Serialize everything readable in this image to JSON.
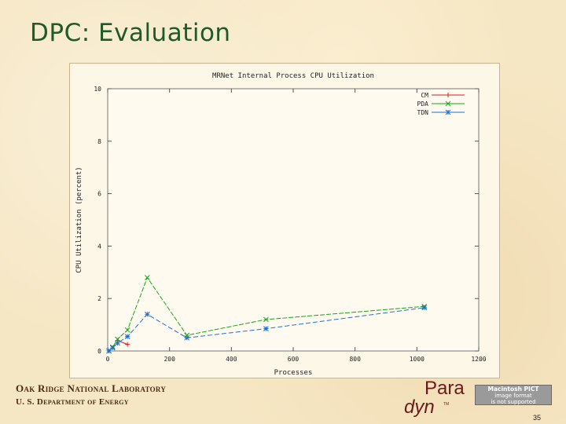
{
  "slide": {
    "title": "DPC: Evaluation",
    "footer_lab": "Oak Ridge National Laboratory",
    "footer_doe": "U. S. Department of Energy",
    "page_number": "35",
    "logo": {
      "text_top": "Para",
      "text_bottom": "dyn",
      "tm": "TM",
      "color": "#6b1a1a"
    },
    "pict_placeholder": {
      "line1": "Macintosh PICT",
      "line2": "image format",
      "line3": "is not supported"
    }
  },
  "chart_data": {
    "type": "line",
    "title": "MRNet Internal Process CPU Utilization",
    "xlabel": "Processes",
    "ylabel": "CPU Utilization (percent)",
    "xlim": [
      0,
      1200
    ],
    "ylim": [
      0,
      10
    ],
    "xticks": [
      0,
      200,
      400,
      600,
      800,
      1000,
      1200
    ],
    "yticks": [
      0,
      2,
      4,
      6,
      8,
      10
    ],
    "legend_position": "top-right",
    "series": [
      {
        "name": "CM",
        "color": "#d42020",
        "marker": "plus",
        "dash": "",
        "points": [
          [
            32,
            0.4
          ],
          [
            64,
            0.25
          ]
        ]
      },
      {
        "name": "PDA",
        "color": "#1aa31a",
        "marker": "cross",
        "dash": "6,2",
        "points": [
          [
            4,
            0.0
          ],
          [
            16,
            0.15
          ],
          [
            32,
            0.45
          ],
          [
            64,
            0.8
          ],
          [
            128,
            2.8
          ],
          [
            256,
            0.6
          ],
          [
            512,
            1.2
          ],
          [
            1024,
            1.7
          ]
        ]
      },
      {
        "name": "TDN",
        "color": "#1f6fd1",
        "marker": "star",
        "dash": "6,3",
        "points": [
          [
            4,
            0.0
          ],
          [
            16,
            0.12
          ],
          [
            32,
            0.3
          ],
          [
            64,
            0.55
          ],
          [
            128,
            1.4
          ],
          [
            256,
            0.5
          ],
          [
            512,
            0.85
          ],
          [
            1024,
            1.65
          ]
        ]
      }
    ]
  }
}
